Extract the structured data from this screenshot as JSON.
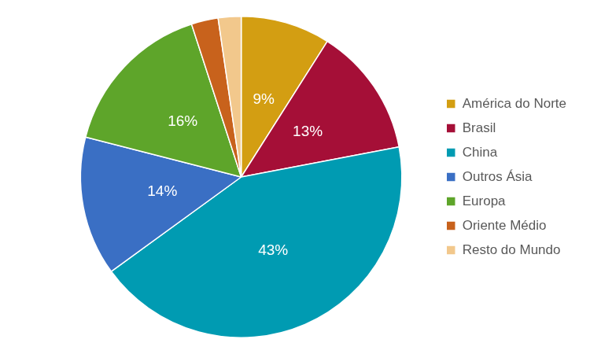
{
  "chart_data": {
    "type": "pie",
    "categories": [
      "América do Norte",
      "Brasil",
      "China",
      "Outros Ásia",
      "Europa",
      "Oriente Médio",
      "Resto do Mundo"
    ],
    "values": [
      9,
      13,
      43,
      14,
      16,
      2.7,
      2.3
    ],
    "value_labels": [
      "9%",
      "13%",
      "43%",
      "14%",
      "16%",
      null,
      null
    ],
    "colors": [
      "#d39e12",
      "#a50f37",
      "#009bb2",
      "#3a6fc4",
      "#5ea52a",
      "#c8621c",
      "#f2c88c"
    ],
    "data_labels": true,
    "legend": "right"
  }
}
